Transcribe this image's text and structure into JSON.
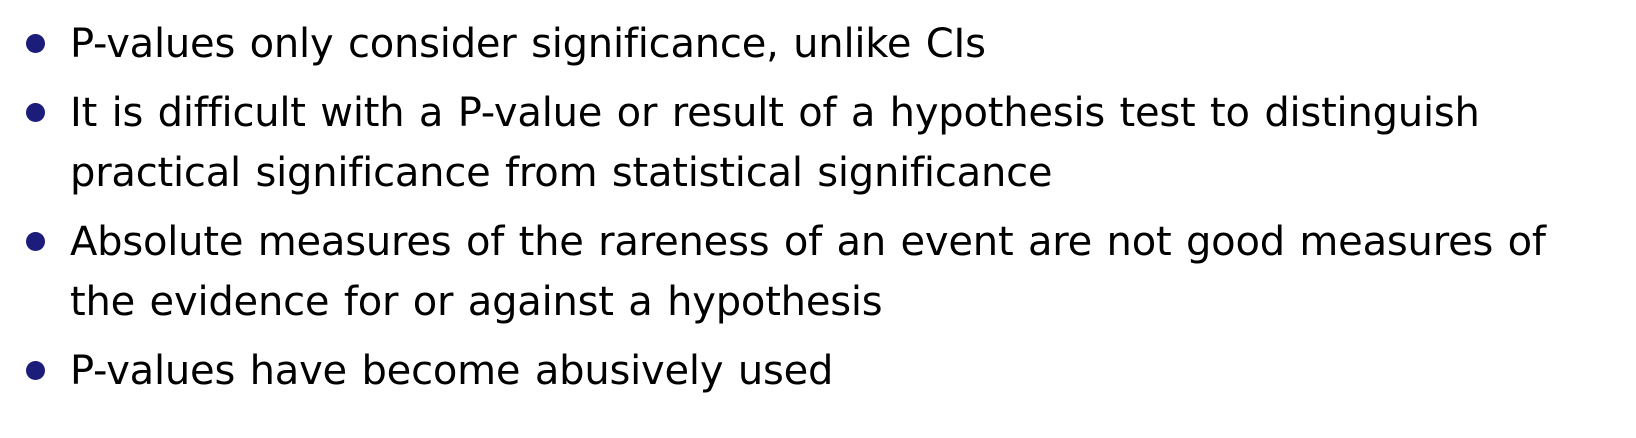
{
  "bullets": [
    {
      "text": "P-values only consider significance, unlike CIs"
    },
    {
      "text": "It is difficult with a P-value or result of a hypothesis test to distinguish practical significance from statistical significance"
    },
    {
      "text": "Absolute measures of the rareness of an event are not good measures of the evidence for or against a hypothesis"
    },
    {
      "text": "P-values have become abusively used"
    }
  ],
  "colors": {
    "bullet": "#1c1c7a",
    "text": "#000000",
    "background": "#ffffff"
  }
}
